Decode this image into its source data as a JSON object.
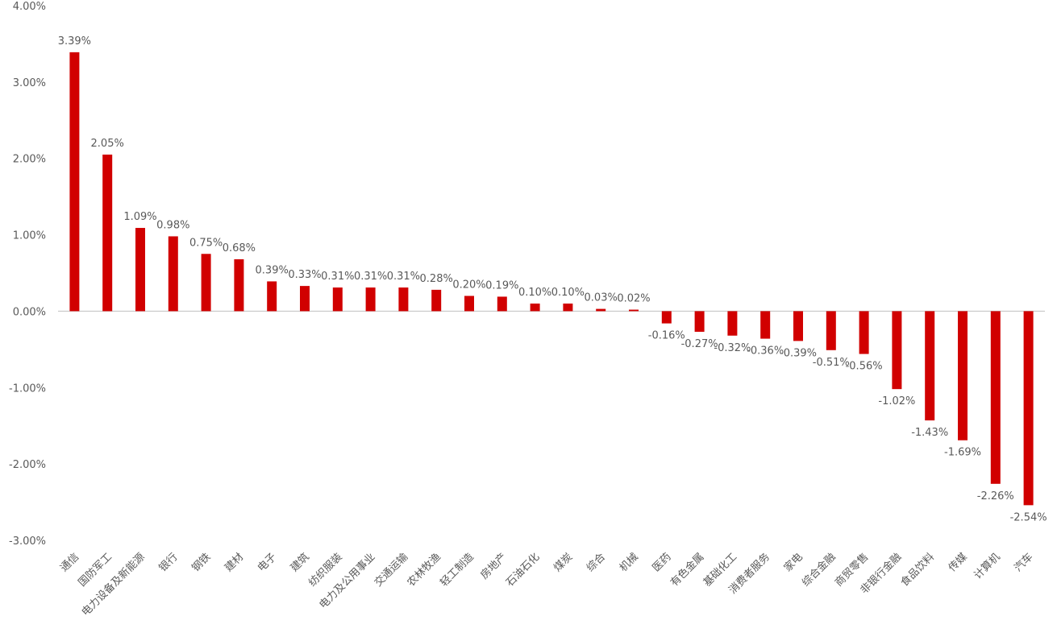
{
  "chart_data": {
    "type": "bar",
    "title": "",
    "xlabel": "",
    "ylabel": "",
    "ylim": [
      -3.0,
      4.0
    ],
    "yticks": [
      {
        "value": 4.0,
        "label": "4.00%"
      },
      {
        "value": 3.0,
        "label": "3.00%"
      },
      {
        "value": 2.0,
        "label": "2.00%"
      },
      {
        "value": 1.0,
        "label": "1.00%"
      },
      {
        "value": 0.0,
        "label": "0.00%"
      },
      {
        "value": -1.0,
        "label": "-1.00%"
      },
      {
        "value": -2.0,
        "label": "-2.00%"
      },
      {
        "value": -3.0,
        "label": "-3.00%"
      }
    ],
    "grid": false,
    "legend": "none",
    "bar_color": "#d10000",
    "axis_color": "#bfbfbf",
    "label_color": "#595959",
    "categories": [
      "通信",
      "国防军工",
      "电力设备及新能源",
      "银行",
      "钢铁",
      "建材",
      "电子",
      "建筑",
      "纺织服装",
      "电力及公用事业",
      "交通运输",
      "农林牧渔",
      "轻工制造",
      "房地产",
      "石油石化",
      "煤炭",
      "综合",
      "机械",
      "医药",
      "有色金属",
      "基础化工",
      "消费者服务",
      "家电",
      "综合金融",
      "商贸零售",
      "非银行金融",
      "食品饮料",
      "传媒",
      "计算机",
      "汽车"
    ],
    "values": [
      3.39,
      2.05,
      1.09,
      0.98,
      0.75,
      0.68,
      0.39,
      0.33,
      0.31,
      0.31,
      0.31,
      0.28,
      0.2,
      0.19,
      0.1,
      0.1,
      0.03,
      0.02,
      -0.16,
      -0.27,
      -0.32,
      -0.36,
      -0.39,
      -0.51,
      -0.56,
      -1.02,
      -1.43,
      -1.69,
      -2.26,
      -2.54
    ],
    "value_labels": [
      "3.39%",
      "2.05%",
      "1.09%",
      "0.98%",
      "0.75%",
      "0.68%",
      "0.39%",
      "0.33%",
      "0.31%",
      "0.31%",
      "0.31%",
      "0.28%",
      "0.20%",
      "0.19%",
      "0.10%",
      "0.10%",
      "0.03%",
      "0.02%",
      "-0.16%",
      "-0.27%",
      "-0.32%",
      "-0.36%",
      "-0.39%",
      "-0.51%",
      "-0.56%",
      "-1.02%",
      "-1.43%",
      "-1.69%",
      "-2.26%",
      "-2.54%"
    ]
  }
}
